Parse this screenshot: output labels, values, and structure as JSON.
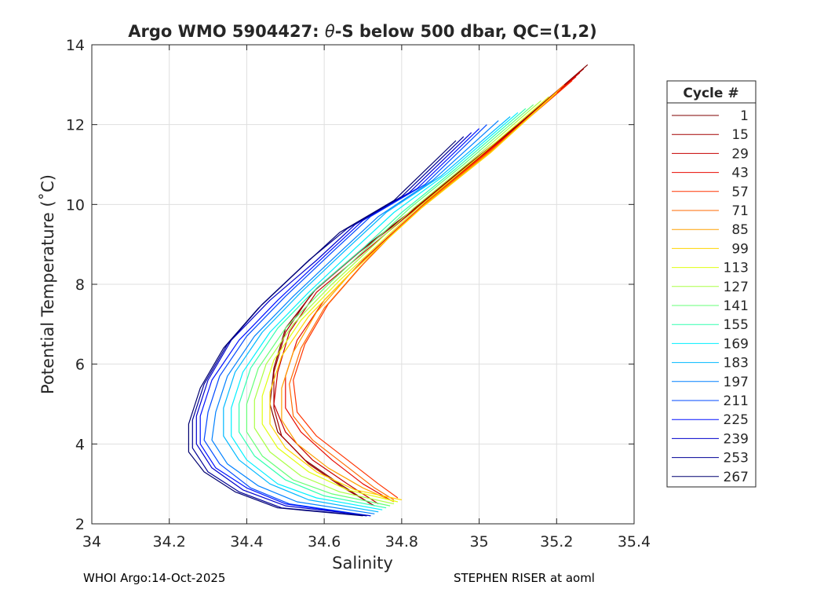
{
  "chart_data": {
    "type": "line",
    "title": "Argo WMO 5904427: θ-S below 500 dbar,  QC=(1,2)",
    "title_parts": {
      "prefix": "Argo WMO 5904427: ",
      "theta": "θ",
      "suffix": "-S below 500 dbar,  QC=(1,2)"
    },
    "xlabel": "Salinity",
    "ylabel": "Potential Temperature (˚C)",
    "xlim": [
      34.0,
      35.4
    ],
    "ylim": [
      2,
      14
    ],
    "xticks": [
      "34",
      "34.2",
      "34.4",
      "34.6",
      "34.8",
      "35",
      "35.2",
      "35.4"
    ],
    "xtick_values": [
      34.0,
      34.2,
      34.4,
      34.6,
      34.8,
      35.0,
      35.2,
      35.4
    ],
    "yticks": [
      "2",
      "4",
      "6",
      "8",
      "10",
      "12",
      "14"
    ],
    "ytick_values": [
      2,
      4,
      6,
      8,
      10,
      12,
      14
    ],
    "grid": true,
    "legend": {
      "title": "Cycle #",
      "placement": "right-outside",
      "entries": [
        {
          "label": "1",
          "color": "#7f0000"
        },
        {
          "label": "15",
          "color": "#a30000"
        },
        {
          "label": "29",
          "color": "#c60000"
        },
        {
          "label": "43",
          "color": "#e80a00"
        },
        {
          "label": "57",
          "color": "#ff3300"
        },
        {
          "label": "71",
          "color": "#ff6a00"
        },
        {
          "label": "85",
          "color": "#ffa000"
        },
        {
          "label": "99",
          "color": "#ffd500"
        },
        {
          "label": "113",
          "color": "#e0ff10"
        },
        {
          "label": "127",
          "color": "#aaff45"
        },
        {
          "label": "141",
          "color": "#66ff77"
        },
        {
          "label": "155",
          "color": "#30ffb0"
        },
        {
          "label": "169",
          "color": "#00f0ff"
        },
        {
          "label": "183",
          "color": "#00b8ff"
        },
        {
          "label": "197",
          "color": "#0080ff"
        },
        {
          "label": "211",
          "color": "#0048ff"
        },
        {
          "label": "225",
          "color": "#0010ff"
        },
        {
          "label": "239",
          "color": "#0000cc"
        },
        {
          "label": "253",
          "color": "#000096"
        },
        {
          "label": "267",
          "color": "#000070"
        }
      ]
    },
    "series": [
      {
        "name": "cycle 1",
        "color": "#7f0000",
        "salinity": [
          35.28,
          35.1,
          34.92,
          34.82,
          34.7,
          34.58,
          34.5,
          34.47,
          34.46,
          34.48,
          34.55,
          34.64,
          34.72
        ],
        "theta": [
          13.5,
          12.0,
          10.6,
          9.8,
          8.9,
          7.9,
          6.9,
          5.9,
          5.0,
          4.3,
          3.6,
          3.0,
          2.5
        ]
      },
      {
        "name": "cycle 15",
        "color": "#a30000",
        "salinity": [
          35.27,
          35.09,
          34.91,
          34.81,
          34.69,
          34.57,
          34.5,
          34.47,
          34.47,
          34.49,
          34.56,
          34.65,
          34.73
        ],
        "theta": [
          13.4,
          11.9,
          10.5,
          9.7,
          8.8,
          7.8,
          6.8,
          5.8,
          4.9,
          4.2,
          3.5,
          2.9,
          2.45
        ]
      },
      {
        "name": "cycle 29",
        "color": "#c60000",
        "salinity": [
          35.26,
          35.08,
          34.9,
          34.8,
          34.69,
          34.58,
          34.51,
          34.48,
          34.47,
          34.5,
          34.57,
          34.66,
          34.74
        ],
        "theta": [
          13.3,
          11.8,
          10.4,
          9.6,
          8.7,
          7.8,
          6.8,
          5.8,
          5.0,
          4.3,
          3.6,
          3.0,
          2.5
        ]
      },
      {
        "name": "cycle 43",
        "color": "#e80a00",
        "salinity": [
          35.25,
          35.07,
          34.89,
          34.8,
          34.7,
          34.6,
          34.53,
          34.5,
          34.5,
          34.54,
          34.62,
          34.7,
          34.77
        ],
        "theta": [
          13.2,
          11.7,
          10.3,
          9.5,
          8.6,
          7.6,
          6.6,
          5.7,
          4.9,
          4.3,
          3.6,
          3.0,
          2.6
        ]
      },
      {
        "name": "cycle 57",
        "color": "#ff3300",
        "salinity": [
          35.24,
          35.06,
          34.88,
          34.79,
          34.7,
          34.61,
          34.55,
          34.52,
          34.53,
          34.58,
          34.66,
          34.74,
          34.79
        ],
        "theta": [
          13.1,
          11.6,
          10.2,
          9.4,
          8.5,
          7.5,
          6.5,
          5.6,
          4.8,
          4.2,
          3.6,
          3.0,
          2.65
        ]
      },
      {
        "name": "cycle 71",
        "color": "#ff6a00",
        "salinity": [
          35.22,
          35.05,
          34.87,
          34.78,
          34.69,
          34.6,
          34.54,
          34.51,
          34.52,
          34.57,
          34.65,
          34.73,
          34.78
        ],
        "theta": [
          13.0,
          11.5,
          10.1,
          9.3,
          8.4,
          7.4,
          6.4,
          5.5,
          4.7,
          4.1,
          3.5,
          2.9,
          2.6
        ]
      },
      {
        "name": "cycle 85",
        "color": "#ffa000",
        "salinity": [
          35.21,
          35.04,
          34.86,
          34.77,
          34.67,
          34.58,
          34.52,
          34.49,
          34.49,
          34.53,
          34.61,
          34.7,
          34.78
        ],
        "theta": [
          12.9,
          11.4,
          10.0,
          9.2,
          8.3,
          7.3,
          6.3,
          5.4,
          4.6,
          4.0,
          3.4,
          2.9,
          2.55
        ]
      },
      {
        "name": "cycle 99",
        "color": "#ffd500",
        "salinity": [
          35.2,
          35.03,
          34.85,
          34.76,
          34.66,
          34.56,
          34.49,
          34.46,
          34.46,
          34.5,
          34.58,
          34.68,
          34.8
        ],
        "theta": [
          12.8,
          11.3,
          9.9,
          9.1,
          8.2,
          7.2,
          6.2,
          5.3,
          4.5,
          3.9,
          3.3,
          2.85,
          2.6
        ]
      },
      {
        "name": "cycle 113",
        "color": "#e0ff10",
        "salinity": [
          35.18,
          35.0,
          34.84,
          34.74,
          34.64,
          34.54,
          34.47,
          34.44,
          34.44,
          34.48,
          34.56,
          34.66,
          34.79
        ],
        "theta": [
          12.7,
          11.2,
          9.9,
          9.0,
          8.1,
          7.1,
          6.1,
          5.2,
          4.5,
          3.9,
          3.3,
          2.85,
          2.55
        ]
      },
      {
        "name": "cycle 127",
        "color": "#aaff45",
        "salinity": [
          35.16,
          34.98,
          34.83,
          34.73,
          34.62,
          34.52,
          34.45,
          34.42,
          34.42,
          34.46,
          34.54,
          34.64,
          34.78
        ],
        "theta": [
          12.6,
          11.1,
          9.9,
          9.0,
          8.0,
          7.0,
          6.0,
          5.1,
          4.4,
          3.8,
          3.2,
          2.8,
          2.5
        ]
      },
      {
        "name": "cycle 141",
        "color": "#66ff77",
        "salinity": [
          35.14,
          34.96,
          34.82,
          34.72,
          34.6,
          34.5,
          34.43,
          34.4,
          34.4,
          34.44,
          34.52,
          34.62,
          34.77
        ],
        "theta": [
          12.5,
          11.0,
          9.9,
          9.0,
          7.9,
          6.9,
          5.9,
          5.0,
          4.3,
          3.7,
          3.1,
          2.75,
          2.45
        ]
      },
      {
        "name": "cycle 155",
        "color": "#30ffb0",
        "salinity": [
          35.12,
          34.94,
          34.8,
          34.7,
          34.58,
          34.48,
          34.41,
          34.38,
          34.38,
          34.42,
          34.5,
          34.6,
          34.76
        ],
        "theta": [
          12.4,
          10.9,
          9.8,
          8.9,
          7.9,
          6.9,
          5.9,
          5.0,
          4.3,
          3.7,
          3.1,
          2.7,
          2.4
        ]
      },
      {
        "name": "cycle 169",
        "color": "#00f0ff",
        "salinity": [
          35.1,
          34.92,
          34.78,
          34.68,
          34.56,
          34.46,
          34.39,
          34.36,
          34.36,
          34.4,
          34.48,
          34.58,
          34.75
        ],
        "theta": [
          12.3,
          10.8,
          9.8,
          8.9,
          7.8,
          6.8,
          5.8,
          4.9,
          4.2,
          3.6,
          3.0,
          2.65,
          2.35
        ]
      },
      {
        "name": "cycle 183",
        "color": "#00b8ff",
        "salinity": [
          35.08,
          34.9,
          34.76,
          34.66,
          34.54,
          34.44,
          34.37,
          34.34,
          34.34,
          34.38,
          34.46,
          34.56,
          34.74
        ],
        "theta": [
          12.2,
          10.7,
          9.8,
          8.9,
          7.8,
          6.8,
          5.8,
          4.9,
          4.2,
          3.6,
          3.0,
          2.6,
          2.3
        ]
      },
      {
        "name": "cycle 197",
        "color": "#0080ff",
        "salinity": [
          35.05,
          34.88,
          34.74,
          34.64,
          34.52,
          34.42,
          34.35,
          34.32,
          34.31,
          34.35,
          34.43,
          34.53,
          34.73
        ],
        "theta": [
          12.1,
          10.6,
          9.7,
          8.8,
          7.7,
          6.7,
          5.7,
          4.8,
          4.1,
          3.5,
          2.95,
          2.55,
          2.25
        ]
      },
      {
        "name": "cycle 211",
        "color": "#0048ff",
        "salinity": [
          35.02,
          34.86,
          34.72,
          34.62,
          34.5,
          34.4,
          34.33,
          34.3,
          34.29,
          34.33,
          34.41,
          34.51,
          34.72
        ],
        "theta": [
          12.0,
          10.5,
          9.7,
          8.8,
          7.7,
          6.7,
          5.7,
          4.8,
          4.1,
          3.5,
          2.9,
          2.5,
          2.2
        ]
      },
      {
        "name": "cycle 225",
        "color": "#0010ff",
        "salinity": [
          35.0,
          34.84,
          34.7,
          34.6,
          34.48,
          34.38,
          34.31,
          34.28,
          34.28,
          34.32,
          34.4,
          34.5,
          34.71
        ],
        "theta": [
          11.9,
          10.4,
          9.6,
          8.7,
          7.6,
          6.6,
          5.6,
          4.7,
          4.0,
          3.4,
          2.9,
          2.5,
          2.2
        ]
      },
      {
        "name": "cycle 239",
        "color": "#0000cc",
        "salinity": [
          34.98,
          34.82,
          34.68,
          34.58,
          34.46,
          34.36,
          34.3,
          34.27,
          34.27,
          34.31,
          34.39,
          34.5,
          34.72
        ],
        "theta": [
          11.8,
          10.3,
          9.5,
          8.6,
          7.6,
          6.6,
          5.6,
          4.7,
          4.0,
          3.4,
          2.85,
          2.45,
          2.2
        ]
      },
      {
        "name": "cycle 253",
        "color": "#000096",
        "salinity": [
          34.96,
          34.8,
          34.66,
          34.56,
          34.44,
          34.35,
          34.29,
          34.26,
          34.26,
          34.3,
          34.38,
          34.49,
          34.71
        ],
        "theta": [
          11.7,
          10.2,
          9.4,
          8.6,
          7.5,
          6.5,
          5.5,
          4.6,
          3.9,
          3.3,
          2.8,
          2.4,
          2.2
        ]
      },
      {
        "name": "cycle 267",
        "color": "#000070",
        "salinity": [
          34.94,
          34.78,
          34.64,
          34.55,
          34.43,
          34.34,
          34.28,
          34.25,
          34.25,
          34.29,
          34.37,
          34.48,
          34.7
        ],
        "theta": [
          11.6,
          10.1,
          9.3,
          8.5,
          7.4,
          6.4,
          5.4,
          4.5,
          3.8,
          3.3,
          2.8,
          2.4,
          2.2
        ]
      }
    ]
  },
  "footer": {
    "left": "WHOI Argo:14-Oct-2025",
    "right": "STEPHEN RISER at aoml"
  }
}
